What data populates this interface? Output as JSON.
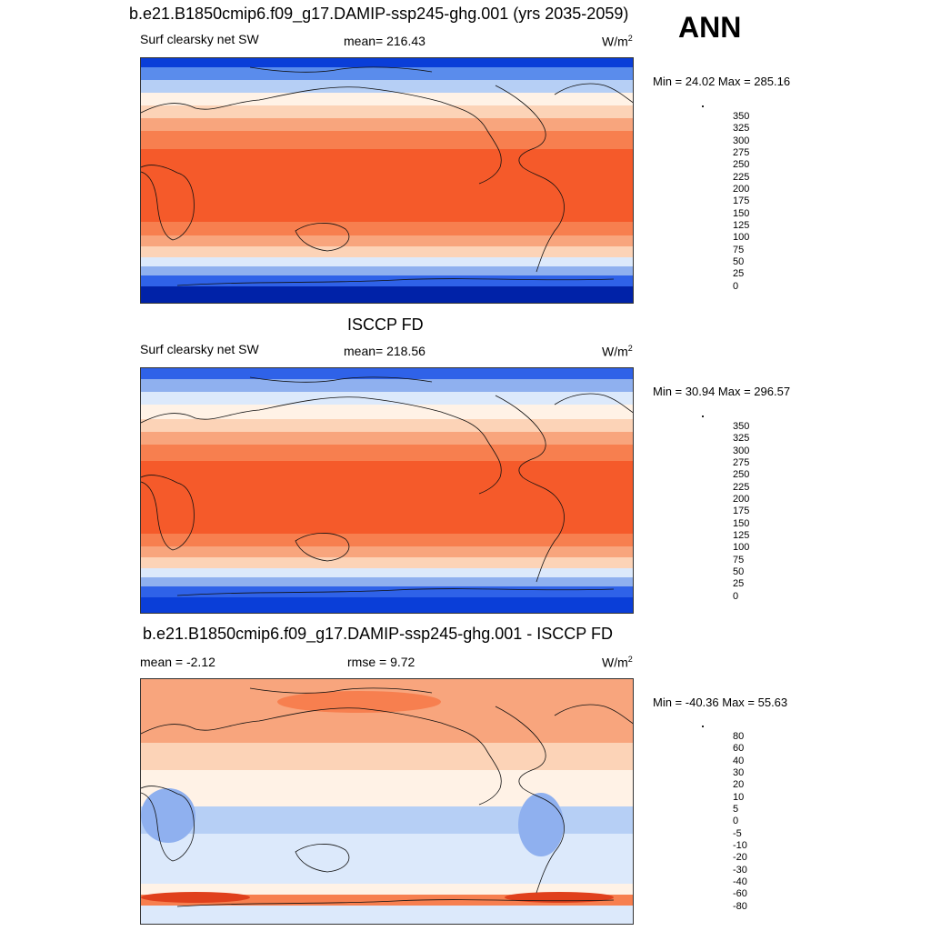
{
  "season": "ANN",
  "panels": [
    {
      "title": "b.e21.B1850cmip6.f09_g17.DAMIP-ssp245-ghg.001 (yrs 2035-2059)",
      "left_label": "Surf clearsky net SW",
      "center_label": "mean= 216.43",
      "units_base": "W/m",
      "units_exp": "2",
      "minmax": "Min =  24.02 Max = 285.16",
      "colorbar_labels": [
        "350",
        "325",
        "300",
        "275",
        "250",
        "225",
        "200",
        "175",
        "150",
        "125",
        "100",
        "75",
        "50",
        "25",
        "0"
      ],
      "colors": [
        "#8b0000",
        "#c1230a",
        "#e0401c",
        "#f55a2a",
        "#f77f4f",
        "#f8a57d",
        "#fcd3b7",
        "#fff2e6",
        "#dce9fb",
        "#b6cff5",
        "#8fb0ef",
        "#5a8cec",
        "#2f62e8",
        "#0a3ed8",
        "#0022a8",
        "#000c80"
      ]
    },
    {
      "title": "ISCCP FD",
      "left_label": "Surf clearsky net SW",
      "center_label": "mean= 218.56",
      "units_base": "W/m",
      "units_exp": "2",
      "minmax": "Min =  30.94 Max = 296.57",
      "colorbar_labels": [
        "350",
        "325",
        "300",
        "275",
        "250",
        "225",
        "200",
        "175",
        "150",
        "125",
        "100",
        "75",
        "50",
        "25",
        "0"
      ],
      "colors": [
        "#8b0000",
        "#c1230a",
        "#e0401c",
        "#f55a2a",
        "#f77f4f",
        "#f8a57d",
        "#fcd3b7",
        "#fff2e6",
        "#dce9fb",
        "#b6cff5",
        "#8fb0ef",
        "#5a8cec",
        "#2f62e8",
        "#0a3ed8",
        "#0022a8",
        "#000c80"
      ]
    },
    {
      "title": "b.e21.B1850cmip6.f09_g17.DAMIP-ssp245-ghg.001 - ISCCP FD",
      "left_label": "mean =  -2.12",
      "center_label": "rmse =   9.72",
      "units_base": "W/m",
      "units_exp": "2",
      "minmax": "Min = -40.36 Max =  55.63",
      "colorbar_labels": [
        "80",
        "60",
        "40",
        "30",
        "20",
        "10",
        "5",
        "0",
        "-5",
        "-10",
        "-20",
        "-30",
        "-40",
        "-60",
        "-80"
      ],
      "colors": [
        "#8b0000",
        "#c1230a",
        "#e0401c",
        "#f55a2a",
        "#f77f4f",
        "#f8a57d",
        "#fcd3b7",
        "#fff2e6",
        "#dce9fb",
        "#b6cff5",
        "#8fb0ef",
        "#5a8cec",
        "#2f62e8",
        "#0a3ed8",
        "#0022a8",
        "#000c80"
      ]
    }
  ]
}
